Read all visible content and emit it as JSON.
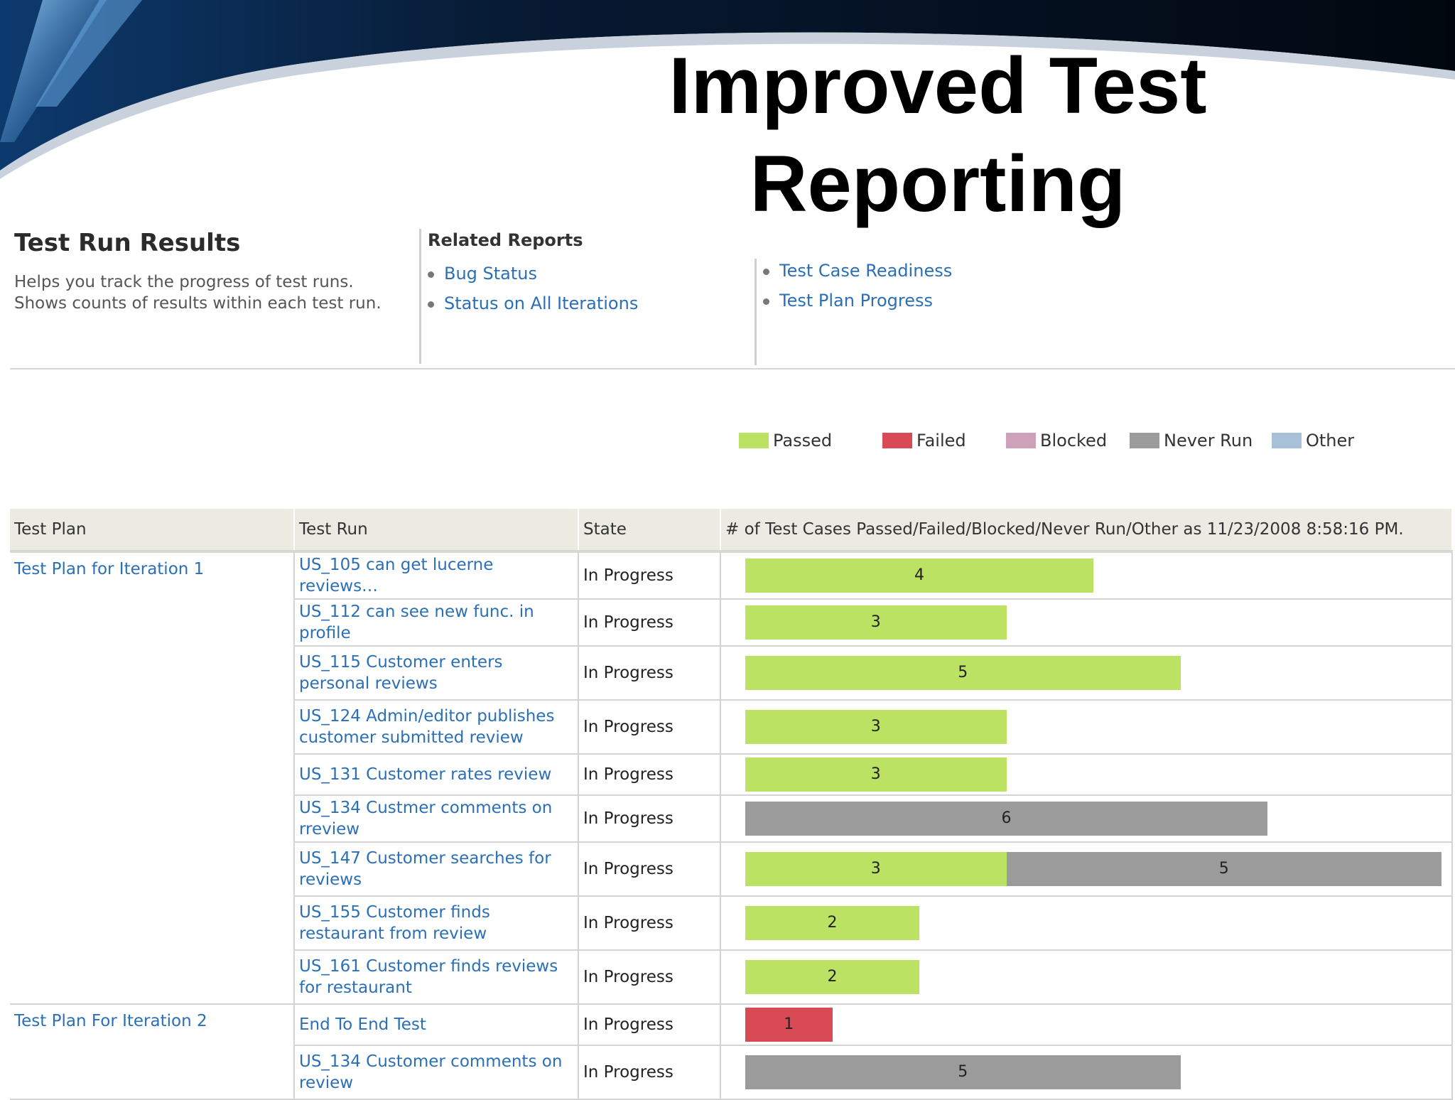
{
  "slide": {
    "title": "Improved Test Reporting"
  },
  "report": {
    "title": "Test Run Results",
    "description": "Helps you track the progress of test runs. Shows counts of results within each test run.",
    "related_heading": "Related Reports",
    "related_col1": [
      "Bug Status",
      "Status on All Iterations"
    ],
    "related_col2": [
      "Test Case Readiness",
      "Test Plan Progress"
    ]
  },
  "legend": [
    {
      "label": "Passed",
      "color": "#bce264"
    },
    {
      "label": "Failed",
      "color": "#d84a55"
    },
    {
      "label": "Blocked",
      "color": "#cfa0ba"
    },
    {
      "label": "Never Run",
      "color": "#9b9b9b"
    },
    {
      "label": "Other",
      "color": "#a8c0d8"
    }
  ],
  "table": {
    "headers": [
      "Test Plan",
      "Test Run",
      "State",
      "# of Test Cases Passed/Failed/Blocked/Never Run/Other as 11/23/2008 8:58:16 PM."
    ],
    "bar_scale_max": 8,
    "plans": [
      {
        "name": "Test Plan for Iteration 1",
        "runs": [
          {
            "run": "US_105 can get lucerne reviews…",
            "state": "In Progress",
            "passed": 4,
            "failed": 0,
            "blocked": 0,
            "never_run": 0,
            "other": 0
          },
          {
            "run": "US_112 can see new func. in profile",
            "state": "In Progress",
            "passed": 3,
            "failed": 0,
            "blocked": 0,
            "never_run": 0,
            "other": 0
          },
          {
            "run": "US_115 Customer enters personal reviews",
            "state": "In Progress",
            "passed": 5,
            "failed": 0,
            "blocked": 0,
            "never_run": 0,
            "other": 0
          },
          {
            "run": "US_124 Admin/editor publishes customer submitted review",
            "state": "In Progress",
            "passed": 3,
            "failed": 0,
            "blocked": 0,
            "never_run": 0,
            "other": 0
          },
          {
            "run": "US_131 Customer rates review",
            "state": "In Progress",
            "passed": 3,
            "failed": 0,
            "blocked": 0,
            "never_run": 0,
            "other": 0
          },
          {
            "run": "US_134 Custmer comments on rreview",
            "state": "In Progress",
            "passed": 0,
            "failed": 0,
            "blocked": 0,
            "never_run": 6,
            "other": 0
          },
          {
            "run": "US_147 Customer searches for reviews",
            "state": "In Progress",
            "passed": 3,
            "failed": 0,
            "blocked": 0,
            "never_run": 5,
            "other": 0
          },
          {
            "run": "US_155 Customer finds restaurant from review",
            "state": "In Progress",
            "passed": 2,
            "failed": 0,
            "blocked": 0,
            "never_run": 0,
            "other": 0
          },
          {
            "run": "US_161 Customer finds reviews for restaurant",
            "state": "In Progress",
            "passed": 2,
            "failed": 0,
            "blocked": 0,
            "never_run": 0,
            "other": 0
          }
        ]
      },
      {
        "name": "Test Plan For Iteration 2",
        "runs": [
          {
            "run": "End To End Test",
            "state": "In Progress",
            "passed": 0,
            "failed": 1,
            "blocked": 0,
            "never_run": 0,
            "other": 0
          },
          {
            "run": "US_134 Customer comments on review",
            "state": "In Progress",
            "passed": 0,
            "failed": 0,
            "blocked": 0,
            "never_run": 5,
            "other": 0
          }
        ]
      }
    ]
  }
}
